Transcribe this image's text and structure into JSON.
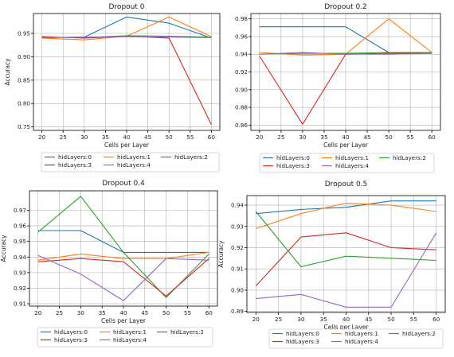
{
  "colors": {
    "hidLayers:0": "#1f77b4",
    "hidLayers:1": "#ff7f0e",
    "hidLayers:2": "#2ca02c",
    "hidLayers:3": "#d62728",
    "hidLayers:4": "#9467bd",
    "grid": "#b0b0b0",
    "axis": "#000000"
  },
  "chart_data": [
    {
      "type": "line",
      "title": "Dropout 0",
      "xlabel": "Cells per Layer",
      "ylabel": "Accuracy",
      "x": [
        20,
        30,
        40,
        50,
        60
      ],
      "xticks": [
        20,
        25,
        30,
        35,
        40,
        45,
        50,
        55,
        60
      ],
      "xlim": [
        18,
        62
      ],
      "yticks": [
        0.75,
        0.8,
        0.85,
        0.9,
        0.95
      ],
      "ytick_labels": [
        "0.75",
        "0.80",
        "0.85",
        "0.90",
        "0.95"
      ],
      "ylim": [
        0.7425,
        0.9925
      ],
      "grid": true,
      "legend_position": "bottom",
      "series": [
        {
          "name": "hidLayers:0",
          "values": [
            0.941,
            0.942,
            0.985,
            0.972,
            0.94
          ]
        },
        {
          "name": "hidLayers:1",
          "values": [
            0.94,
            0.936,
            0.944,
            0.985,
            0.943
          ]
        },
        {
          "name": "hidLayers:2",
          "values": [
            0.942,
            0.941,
            0.945,
            0.944,
            0.942
          ]
        },
        {
          "name": "hidLayers:3",
          "values": [
            0.943,
            0.94,
            0.944,
            0.94,
            0.755
          ]
        },
        {
          "name": "hidLayers:4",
          "values": [
            0.941,
            0.942,
            0.943,
            0.942,
            0.941
          ]
        }
      ]
    },
    {
      "type": "line",
      "title": "Dropout 0.2",
      "xlabel": "Cells per Layer",
      "ylabel": "",
      "x": [
        20,
        30,
        40,
        50,
        60
      ],
      "xticks": [
        20,
        25,
        30,
        35,
        40,
        45,
        50,
        55,
        60
      ],
      "xlim": [
        18,
        62
      ],
      "yticks": [
        0.86,
        0.88,
        0.9,
        0.92,
        0.94,
        0.96,
        0.98
      ],
      "ytick_labels": [
        "0.86",
        "0.88",
        "0.90",
        "0.92",
        "0.94",
        "0.96",
        "0.98"
      ],
      "ylim": [
        0.854,
        0.986
      ],
      "grid": true,
      "legend_position": "bottom",
      "series": [
        {
          "name": "hidLayers:0",
          "values": [
            0.971,
            0.971,
            0.971,
            0.942,
            0.942
          ]
        },
        {
          "name": "hidLayers:1",
          "values": [
            0.942,
            0.939,
            0.94,
            0.98,
            0.942
          ]
        },
        {
          "name": "hidLayers:2",
          "values": [
            0.94,
            0.941,
            0.941,
            0.942,
            0.942
          ]
        },
        {
          "name": "hidLayers:3",
          "values": [
            0.938,
            0.861,
            0.94,
            0.941,
            0.941
          ]
        },
        {
          "name": "hidLayers:4",
          "values": [
            0.94,
            0.942,
            0.94,
            0.94,
            0.941
          ]
        }
      ]
    },
    {
      "type": "line",
      "title": "Dropout 0.4",
      "xlabel": "Cells per Layer",
      "ylabel": "Accuracy",
      "x": [
        20,
        30,
        40,
        50,
        60
      ],
      "xticks": [
        20,
        25,
        30,
        35,
        40,
        45,
        50,
        55,
        60
      ],
      "xlim": [
        18,
        62
      ],
      "yticks": [
        0.91,
        0.92,
        0.93,
        0.94,
        0.95,
        0.96,
        0.97
      ],
      "ytick_labels": [
        "0.91",
        "0.92",
        "0.93",
        "0.94",
        "0.95",
        "0.96",
        "0.97"
      ],
      "ylim": [
        0.9085,
        0.9825
      ],
      "grid": true,
      "legend_position": "bottom",
      "series": [
        {
          "name": "hidLayers:0",
          "values": [
            0.957,
            0.957,
            0.943,
            0.943,
            0.943
          ]
        },
        {
          "name": "hidLayers:1",
          "values": [
            0.938,
            0.942,
            0.939,
            0.939,
            0.943
          ]
        },
        {
          "name": "hidLayers:2",
          "values": [
            0.956,
            0.979,
            0.943,
            0.914,
            0.942
          ]
        },
        {
          "name": "hidLayers:3",
          "values": [
            0.937,
            0.939,
            0.937,
            0.915,
            0.939
          ]
        },
        {
          "name": "hidLayers:4",
          "values": [
            0.941,
            0.929,
            0.912,
            0.939,
            0.938
          ]
        }
      ]
    },
    {
      "type": "line",
      "title": "Dropout 0.5",
      "xlabel": "Cells per Layer",
      "ylabel": "Accuracy",
      "x": [
        20,
        30,
        40,
        50,
        60
      ],
      "xticks": [
        20,
        25,
        30,
        35,
        40,
        45,
        50,
        55,
        60
      ],
      "xlim": [
        18,
        62
      ],
      "yticks": [
        0.89,
        0.9,
        0.91,
        0.92,
        0.93,
        0.94
      ],
      "ytick_labels": [
        "0.89",
        "0.90",
        "0.91",
        "0.92",
        "0.93",
        "0.94"
      ],
      "ylim": [
        0.8895,
        0.9445
      ],
      "grid": true,
      "legend_position": "bottom",
      "series": [
        {
          "name": "hidLayers:0",
          "values": [
            0.936,
            0.938,
            0.939,
            0.942,
            0.942
          ]
        },
        {
          "name": "hidLayers:1",
          "values": [
            0.929,
            0.936,
            0.941,
            0.94,
            0.937
          ]
        },
        {
          "name": "hidLayers:2",
          "values": [
            0.937,
            0.911,
            0.916,
            0.915,
            0.914
          ]
        },
        {
          "name": "hidLayers:3",
          "values": [
            0.902,
            0.925,
            0.927,
            0.92,
            0.919
          ]
        },
        {
          "name": "hidLayers:4",
          "values": [
            0.896,
            0.898,
            0.892,
            0.892,
            0.927
          ]
        }
      ]
    }
  ]
}
